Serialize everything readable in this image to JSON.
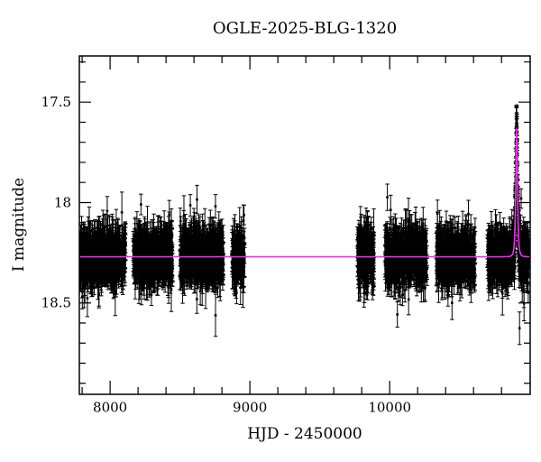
{
  "figure": {
    "background": "#ffffff",
    "text_color": "#000000"
  },
  "chart_data": {
    "type": "scatter",
    "title": "OGLE-2025-BLG-1320",
    "xlabel": "HJD - 2450000",
    "ylabel": "I magnitude",
    "xlim": [
      7780,
      11005
    ],
    "ylim": [
      17.27,
      18.955
    ],
    "y_axis_inverted": true,
    "grid": false,
    "legend": "none",
    "x_major_ticks": [
      8000,
      9000,
      10000
    ],
    "x_major_tick_labels": [
      "8000",
      "9000",
      "10000"
    ],
    "x_minor_step": 200,
    "y_major_ticks": [
      17.5,
      18,
      18.5
    ],
    "y_major_tick_labels": [
      "17.5",
      "18",
      "18.5"
    ],
    "y_minor_step": 0.1,
    "baseline_mag": 18.27,
    "scatter_sigma_mag": 0.055,
    "outlier_fraction": 0.05,
    "outlier_scale": 2.3,
    "errorbar_halflength_mag_min": 0.048,
    "errorbar_halflength_mag_spread": 0.03,
    "errorbar_halflength_mag_max": 0.13,
    "marker_color": "#000000",
    "model_color": "#ee2cee",
    "model": {
      "type": "paczynski",
      "t0": 10908,
      "tE": 9,
      "u0": 0.64,
      "baseline_mag": 18.27,
      "peak_mag": 17.65
    },
    "seasons": [
      {
        "range": [
          7785,
          8112
        ],
        "n": 620
      },
      {
        "range": [
          8165,
          8448
        ],
        "n": 600
      },
      {
        "range": [
          8500,
          8812
        ],
        "n": 630
      },
      {
        "range": [
          8872,
          8962
        ],
        "n": 170
      },
      {
        "range": [
          9768,
          9888
        ],
        "n": 270
      },
      {
        "range": [
          9965,
          10268
        ],
        "n": 560
      },
      {
        "range": [
          10332,
          10612
        ],
        "n": 520
      },
      {
        "range": [
          10698,
          10998
        ],
        "n": 650
      }
    ],
    "event_sampling": {
      "range": [
        10886,
        10930
      ],
      "n": 80
    },
    "rng_seed": 20251320
  }
}
